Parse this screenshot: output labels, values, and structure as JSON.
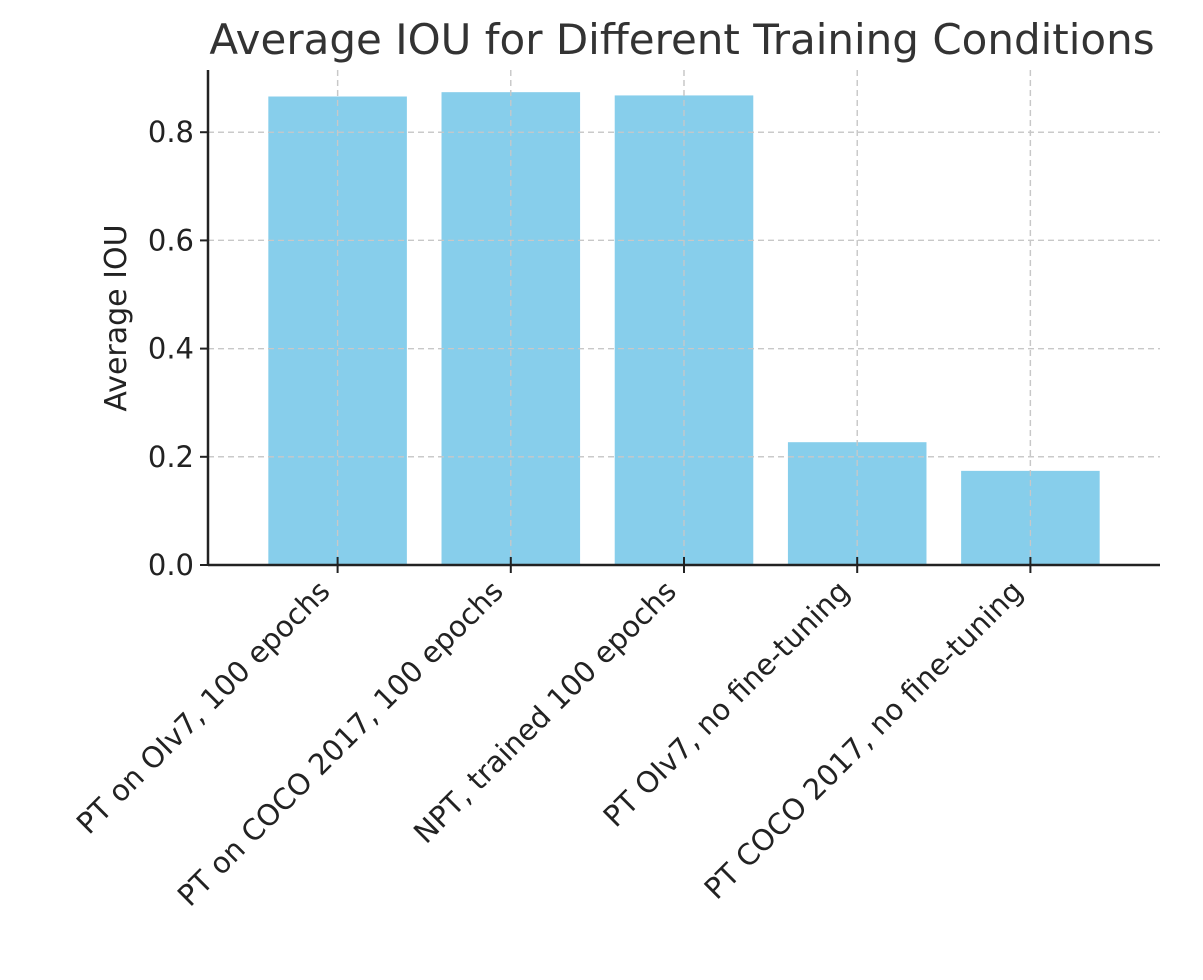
{
  "chart_data": {
    "type": "bar",
    "title": "Average IOU for Different Training Conditions",
    "xlabel": "",
    "ylabel": "Average IOU",
    "categories": [
      "PT on OIv7, 100 epochs",
      "PT on COCO 2017, 100 epochs",
      "NPT, trained 100 epochs",
      "PT OIv7, no fine-tuning",
      "PT COCO 2017, no fine-tuning"
    ],
    "values": [
      0.866,
      0.874,
      0.868,
      0.227,
      0.174
    ],
    "ylim": [
      0,
      0.915
    ],
    "yticks": [
      0.0,
      0.2,
      0.4,
      0.6,
      0.8
    ],
    "ytick_labels": [
      "0.0",
      "0.2",
      "0.4",
      "0.6",
      "0.8"
    ],
    "grid": true,
    "bar_color": "#87CEEB"
  }
}
